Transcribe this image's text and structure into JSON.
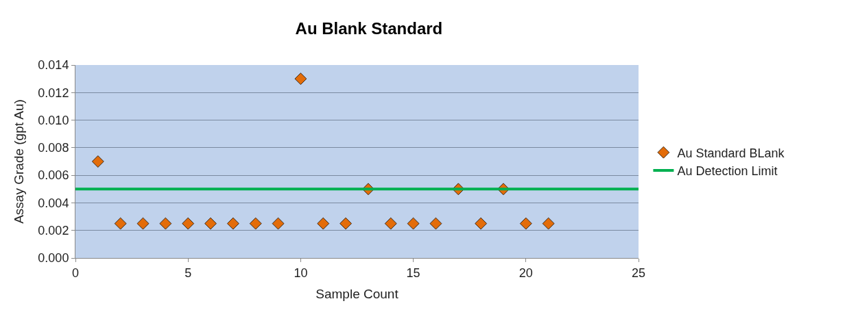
{
  "chart_data": {
    "type": "scatter",
    "title": "Au Blank Standard",
    "xlabel": "Sample Count",
    "ylabel": "Assay Grade (gpt Au)",
    "series": [
      {
        "name": "Au Standard BLank",
        "color": "#e36c09",
        "marker": "diamond",
        "x": [
          1,
          2,
          3,
          4,
          5,
          6,
          7,
          8,
          9,
          10,
          11,
          12,
          13,
          14,
          15,
          16,
          17,
          18,
          19,
          20,
          21
        ],
        "values": [
          0.007,
          0.0025,
          0.0025,
          0.0025,
          0.0025,
          0.0025,
          0.0025,
          0.0025,
          0.0025,
          0.013,
          0.0025,
          0.0025,
          0.005,
          0.0025,
          0.0025,
          0.0025,
          0.005,
          0.0025,
          0.005,
          0.0025,
          0.0025
        ]
      },
      {
        "name": "Au Detection Limit",
        "type": "line",
        "color": "#00b050",
        "marker": "none",
        "line_style": "solid",
        "x": [
          0,
          25
        ],
        "values": [
          0.005,
          0.005
        ]
      }
    ],
    "xlim": [
      0,
      25
    ],
    "xticks": [
      0,
      5,
      10,
      15,
      20,
      25
    ],
    "ylim": [
      0,
      0.014
    ],
    "yticks": [
      {
        "value": 0,
        "label": "0.000"
      },
      {
        "value": 0.002,
        "label": "0.002"
      },
      {
        "value": 0.004,
        "label": "0.004"
      },
      {
        "value": 0.006,
        "label": "0.006"
      },
      {
        "value": 0.008,
        "label": "0.008"
      },
      {
        "value": 0.01,
        "label": "0.010"
      },
      {
        "value": 0.012,
        "label": "0.012"
      },
      {
        "value": 0.014,
        "label": "0.014"
      }
    ],
    "grid": "y",
    "legend": "right"
  }
}
